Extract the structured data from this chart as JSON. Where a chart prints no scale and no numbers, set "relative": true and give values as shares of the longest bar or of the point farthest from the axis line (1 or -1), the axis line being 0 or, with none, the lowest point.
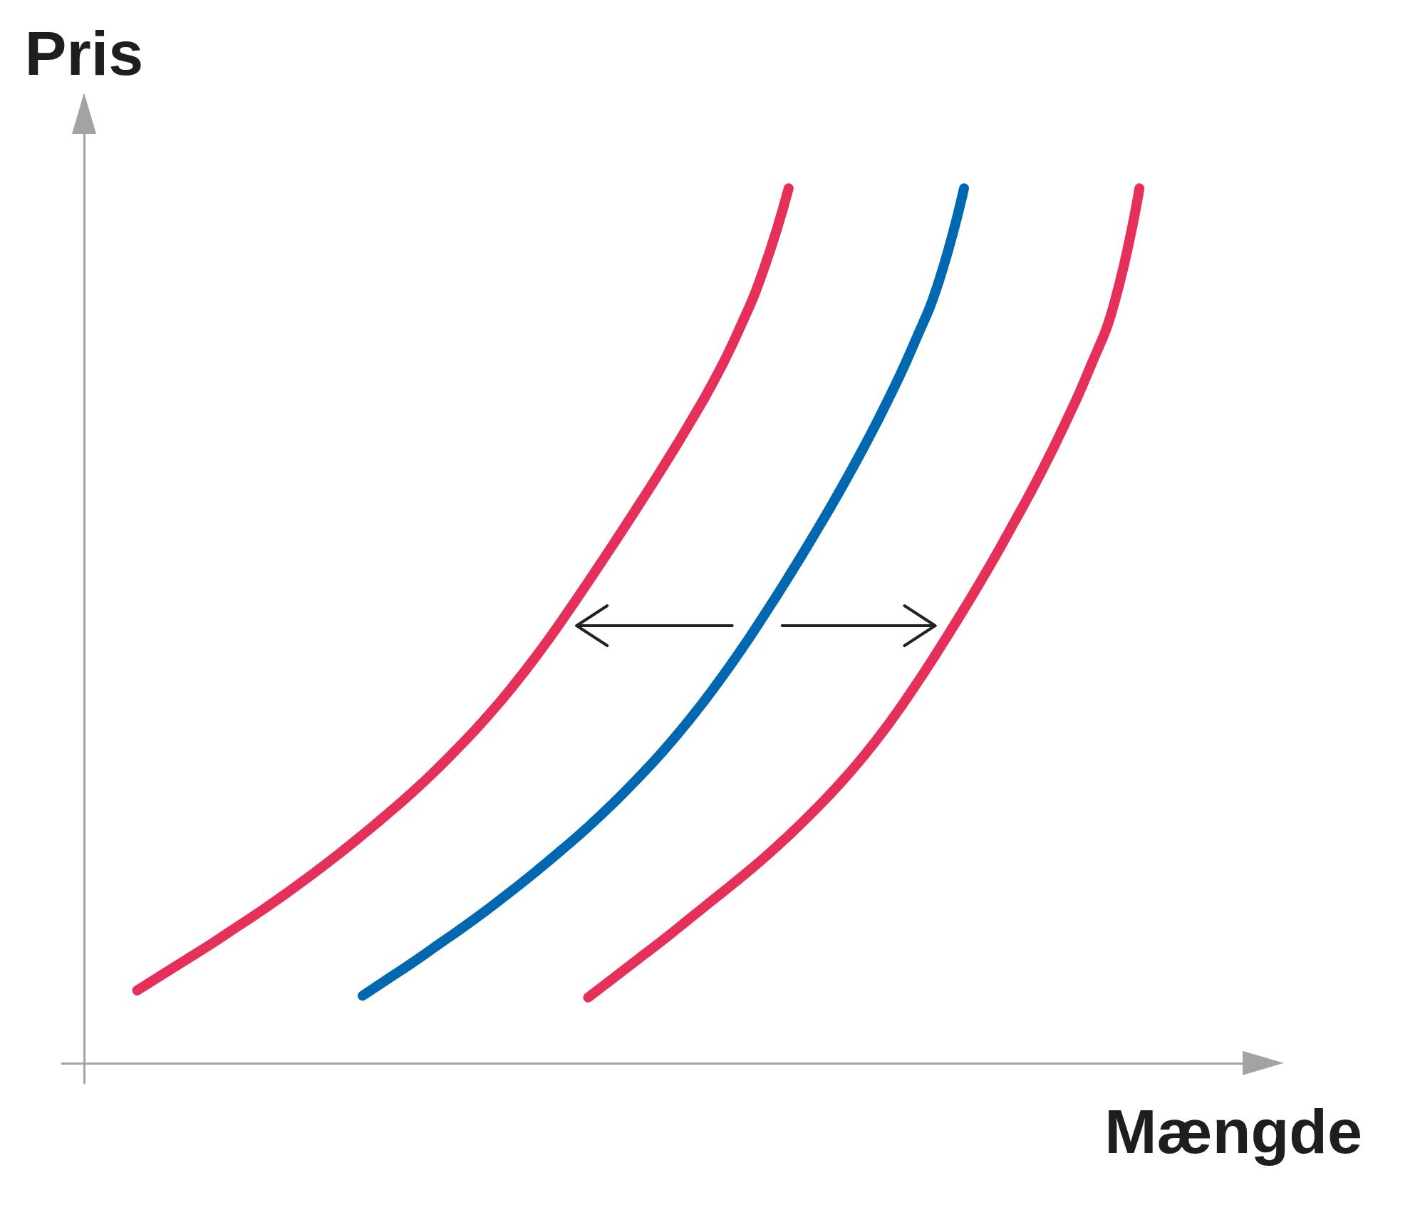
{
  "chart_data": {
    "type": "line",
    "xlabel": "Mængde",
    "ylabel": "Pris",
    "relative": true,
    "marker": "none",
    "categories": [
      null,
      null,
      null,
      null,
      null,
      null,
      null,
      null,
      null,
      null,
      null,
      null,
      null,
      null,
      null,
      null,
      null,
      null,
      null,
      null,
      null,
      null,
      null,
      null,
      null,
      null,
      null,
      null,
      null,
      null,
      null,
      null,
      null,
      null,
      null,
      null,
      null,
      null,
      null,
      null,
      null,
      null,
      null,
      null,
      null,
      null,
      null,
      null,
      null
    ],
    "series": [
      {
        "color": "#e5305a",
        "values": [
          null,
          null,
          null,
          0.083,
          0.101,
          0.119,
          0.137,
          0.156,
          0.175,
          0.195,
          0.216,
          0.238,
          0.261,
          0.285,
          0.31,
          0.337,
          0.366,
          0.397,
          0.431,
          0.468,
          0.508,
          0.55,
          0.593,
          0.637,
          0.682,
          0.729,
          0.779,
          0.837,
          0.907,
          1,
          null,
          null,
          null,
          null,
          null,
          null,
          null,
          null,
          null,
          null,
          null,
          null,
          null,
          null,
          null,
          null,
          null,
          null,
          null
        ]
      },
      {
        "color": "#0067b1",
        "values": [
          null,
          null,
          null,
          null,
          null,
          null,
          null,
          null,
          null,
          null,
          null,
          null,
          0.077,
          0.096,
          0.115,
          0.135,
          0.155,
          0.176,
          0.198,
          0.221,
          0.245,
          0.27,
          0.297,
          0.326,
          0.357,
          0.391,
          0.428,
          0.468,
          0.511,
          0.556,
          0.603,
          0.652,
          0.704,
          0.76,
          0.822,
          0.894,
          1,
          null,
          null,
          null,
          null,
          null,
          null,
          null,
          null,
          null,
          null,
          null,
          null
        ]
      },
      {
        "color": "#e5305a",
        "values": [
          null,
          null,
          null,
          null,
          null,
          null,
          null,
          null,
          null,
          null,
          null,
          null,
          null,
          null,
          null,
          null,
          null,
          null,
          null,
          null,
          null,
          0.075,
          0.097,
          0.119,
          0.141,
          0.164,
          0.187,
          0.21,
          0.234,
          0.26,
          0.288,
          0.318,
          0.351,
          0.388,
          0.429,
          0.473,
          0.519,
          0.567,
          0.618,
          0.671,
          0.729,
          0.793,
          0.869,
          1,
          null,
          null,
          null,
          null,
          null
        ]
      }
    ]
  }
}
